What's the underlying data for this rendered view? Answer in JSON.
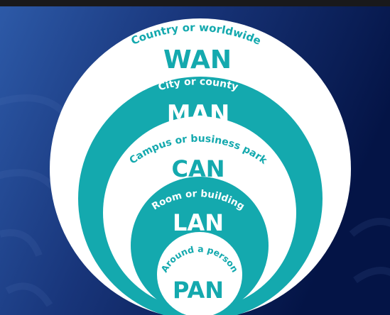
{
  "colors": {
    "bg_left": "#2d5aa8",
    "bg_right": "#041446",
    "top_bar": "#19191b",
    "teal": "#14a9ae",
    "white": "#ffffff"
  },
  "rings": [
    {
      "name": "wan",
      "acronym": "WAN",
      "scope": "Country or worldwide",
      "fill": "white"
    },
    {
      "name": "man",
      "acronym": "MAN",
      "scope": "City or county",
      "fill": "teal"
    },
    {
      "name": "can",
      "acronym": "CAN",
      "scope": "Campus or business park",
      "fill": "white"
    },
    {
      "name": "lan",
      "acronym": "LAN",
      "scope": "Room or building",
      "fill": "teal"
    },
    {
      "name": "pan",
      "acronym": "PAN",
      "scope": "Around a person",
      "fill": "white"
    }
  ]
}
